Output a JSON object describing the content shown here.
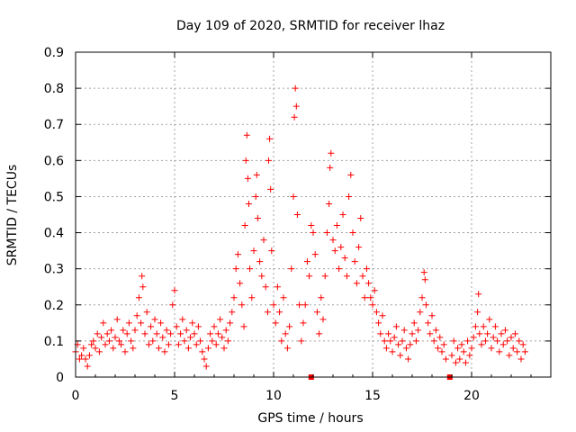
{
  "chart_data": {
    "type": "scatter",
    "title": "Day 109 of 2020, SRMTID for receiver lhaz",
    "xlabel": "GPS time / hours",
    "ylabel": "SRMTID / TECUs",
    "xlim": [
      0,
      24
    ],
    "ylim": [
      0,
      0.9
    ],
    "x_ticks": [
      0,
      5,
      10,
      15,
      20
    ],
    "x_tick_labels": [
      "0",
      "5",
      "10",
      "15",
      "20"
    ],
    "y_ticks": [
      0,
      0.1,
      0.2,
      0.3,
      0.4,
      0.5,
      0.6,
      0.7,
      0.8,
      0.9
    ],
    "y_tick_labels": [
      "0",
      "0.1",
      "0.2",
      "0.3",
      "0.4",
      "0.5",
      "0.6",
      "0.7",
      "0.8",
      "0.9"
    ],
    "grid": true,
    "marker": "plus",
    "color": "#ff0000",
    "series": [
      {
        "name": "SRMTID",
        "points": [
          [
            0.0,
            0.07
          ],
          [
            0.1,
            0.09
          ],
          [
            0.2,
            0.05
          ],
          [
            0.3,
            0.06
          ],
          [
            0.4,
            0.08
          ],
          [
            0.5,
            0.05
          ],
          [
            0.6,
            0.03
          ],
          [
            0.7,
            0.06
          ],
          [
            0.8,
            0.09
          ],
          [
            0.9,
            0.1
          ],
          [
            1.0,
            0.08
          ],
          [
            1.1,
            0.12
          ],
          [
            1.2,
            0.07
          ],
          [
            1.3,
            0.11
          ],
          [
            1.4,
            0.15
          ],
          [
            1.5,
            0.09
          ],
          [
            1.6,
            0.12
          ],
          [
            1.7,
            0.1
          ],
          [
            1.8,
            0.13
          ],
          [
            1.9,
            0.08
          ],
          [
            2.0,
            0.11
          ],
          [
            2.1,
            0.16
          ],
          [
            2.2,
            0.1
          ],
          [
            2.3,
            0.09
          ],
          [
            2.4,
            0.13
          ],
          [
            2.5,
            0.07
          ],
          [
            2.6,
            0.12
          ],
          [
            2.7,
            0.15
          ],
          [
            2.8,
            0.1
          ],
          [
            2.9,
            0.08
          ],
          [
            3.0,
            0.13
          ],
          [
            3.1,
            0.17
          ],
          [
            3.2,
            0.22
          ],
          [
            3.3,
            0.15
          ],
          [
            3.35,
            0.28
          ],
          [
            3.4,
            0.25
          ],
          [
            3.5,
            0.12
          ],
          [
            3.6,
            0.18
          ],
          [
            3.7,
            0.09
          ],
          [
            3.8,
            0.14
          ],
          [
            3.9,
            0.1
          ],
          [
            4.0,
            0.16
          ],
          [
            4.1,
            0.12
          ],
          [
            4.2,
            0.08
          ],
          [
            4.3,
            0.15
          ],
          [
            4.4,
            0.11
          ],
          [
            4.5,
            0.07
          ],
          [
            4.6,
            0.13
          ],
          [
            4.7,
            0.09
          ],
          [
            4.8,
            0.12
          ],
          [
            4.9,
            0.2
          ],
          [
            5.0,
            0.24
          ],
          [
            5.1,
            0.14
          ],
          [
            5.2,
            0.09
          ],
          [
            5.3,
            0.12
          ],
          [
            5.4,
            0.16
          ],
          [
            5.5,
            0.1
          ],
          [
            5.6,
            0.13
          ],
          [
            5.7,
            0.08
          ],
          [
            5.8,
            0.11
          ],
          [
            5.9,
            0.15
          ],
          [
            6.0,
            0.12
          ],
          [
            6.1,
            0.09
          ],
          [
            6.2,
            0.14
          ],
          [
            6.3,
            0.1
          ],
          [
            6.4,
            0.07
          ],
          [
            6.5,
            0.05
          ],
          [
            6.6,
            0.03
          ],
          [
            6.7,
            0.08
          ],
          [
            6.8,
            0.12
          ],
          [
            6.9,
            0.1
          ],
          [
            7.0,
            0.14
          ],
          [
            7.1,
            0.09
          ],
          [
            7.2,
            0.12
          ],
          [
            7.3,
            0.16
          ],
          [
            7.4,
            0.11
          ],
          [
            7.5,
            0.08
          ],
          [
            7.6,
            0.13
          ],
          [
            7.7,
            0.1
          ],
          [
            7.8,
            0.15
          ],
          [
            7.9,
            0.18
          ],
          [
            8.0,
            0.22
          ],
          [
            8.1,
            0.3
          ],
          [
            8.2,
            0.34
          ],
          [
            8.3,
            0.26
          ],
          [
            8.4,
            0.2
          ],
          [
            8.5,
            0.14
          ],
          [
            8.55,
            0.42
          ],
          [
            8.6,
            0.6
          ],
          [
            8.65,
            0.67
          ],
          [
            8.7,
            0.55
          ],
          [
            8.75,
            0.48
          ],
          [
            8.8,
            0.3
          ],
          [
            8.9,
            0.22
          ],
          [
            9.0,
            0.35
          ],
          [
            9.1,
            0.5
          ],
          [
            9.15,
            0.56
          ],
          [
            9.2,
            0.44
          ],
          [
            9.3,
            0.32
          ],
          [
            9.4,
            0.28
          ],
          [
            9.5,
            0.38
          ],
          [
            9.6,
            0.25
          ],
          [
            9.7,
            0.18
          ],
          [
            9.75,
            0.6
          ],
          [
            9.8,
            0.66
          ],
          [
            9.85,
            0.52
          ],
          [
            9.9,
            0.35
          ],
          [
            10.0,
            0.2
          ],
          [
            10.1,
            0.15
          ],
          [
            10.2,
            0.25
          ],
          [
            10.3,
            0.18
          ],
          [
            10.4,
            0.1
          ],
          [
            10.5,
            0.22
          ],
          [
            10.6,
            0.12
          ],
          [
            10.7,
            0.08
          ],
          [
            10.8,
            0.14
          ],
          [
            10.9,
            0.3
          ],
          [
            11.0,
            0.5
          ],
          [
            11.05,
            0.72
          ],
          [
            11.1,
            0.8
          ],
          [
            11.15,
            0.75
          ],
          [
            11.2,
            0.45
          ],
          [
            11.3,
            0.2
          ],
          [
            11.4,
            0.1
          ],
          [
            11.5,
            0.15
          ],
          [
            11.6,
            0.2
          ],
          [
            11.7,
            0.32
          ],
          [
            11.8,
            0.28
          ],
          [
            11.9,
            0.42
          ],
          [
            12.0,
            0.4
          ],
          [
            12.1,
            0.34
          ],
          [
            12.2,
            0.18
          ],
          [
            12.3,
            0.12
          ],
          [
            12.4,
            0.22
          ],
          [
            12.5,
            0.16
          ],
          [
            12.6,
            0.28
          ],
          [
            12.7,
            0.4
          ],
          [
            12.8,
            0.48
          ],
          [
            12.85,
            0.58
          ],
          [
            12.9,
            0.62
          ],
          [
            13.0,
            0.38
          ],
          [
            13.1,
            0.35
          ],
          [
            13.2,
            0.42
          ],
          [
            13.3,
            0.3
          ],
          [
            13.4,
            0.36
          ],
          [
            13.5,
            0.45
          ],
          [
            13.6,
            0.33
          ],
          [
            13.7,
            0.28
          ],
          [
            13.8,
            0.5
          ],
          [
            13.9,
            0.56
          ],
          [
            14.0,
            0.4
          ],
          [
            14.1,
            0.32
          ],
          [
            14.2,
            0.26
          ],
          [
            14.3,
            0.36
          ],
          [
            14.4,
            0.44
          ],
          [
            14.5,
            0.28
          ],
          [
            14.6,
            0.22
          ],
          [
            14.7,
            0.3
          ],
          [
            14.8,
            0.26
          ],
          [
            14.9,
            0.22
          ],
          [
            15.0,
            0.2
          ],
          [
            15.1,
            0.24
          ],
          [
            15.2,
            0.18
          ],
          [
            15.3,
            0.15
          ],
          [
            15.4,
            0.12
          ],
          [
            15.5,
            0.17
          ],
          [
            15.6,
            0.1
          ],
          [
            15.7,
            0.08
          ],
          [
            15.8,
            0.12
          ],
          [
            15.9,
            0.1
          ],
          [
            16.0,
            0.07
          ],
          [
            16.1,
            0.11
          ],
          [
            16.2,
            0.14
          ],
          [
            16.3,
            0.09
          ],
          [
            16.4,
            0.06
          ],
          [
            16.5,
            0.1
          ],
          [
            16.6,
            0.13
          ],
          [
            16.7,
            0.08
          ],
          [
            16.8,
            0.05
          ],
          [
            16.9,
            0.09
          ],
          [
            17.0,
            0.12
          ],
          [
            17.1,
            0.15
          ],
          [
            17.2,
            0.1
          ],
          [
            17.3,
            0.13
          ],
          [
            17.4,
            0.18
          ],
          [
            17.5,
            0.22
          ],
          [
            17.6,
            0.29
          ],
          [
            17.65,
            0.27
          ],
          [
            17.7,
            0.2
          ],
          [
            17.8,
            0.15
          ],
          [
            17.9,
            0.12
          ],
          [
            18.0,
            0.17
          ],
          [
            18.1,
            0.1
          ],
          [
            18.2,
            0.13
          ],
          [
            18.3,
            0.08
          ],
          [
            18.4,
            0.11
          ],
          [
            18.5,
            0.07
          ],
          [
            18.6,
            0.09
          ],
          [
            18.7,
            0.05
          ],
          [
            19.0,
            0.06
          ],
          [
            19.1,
            0.1
          ],
          [
            19.2,
            0.04
          ],
          [
            19.3,
            0.08
          ],
          [
            19.4,
            0.05
          ],
          [
            19.5,
            0.09
          ],
          [
            19.6,
            0.07
          ],
          [
            19.7,
            0.04
          ],
          [
            19.8,
            0.1
          ],
          [
            19.9,
            0.06
          ],
          [
            20.0,
            0.08
          ],
          [
            20.1,
            0.11
          ],
          [
            20.2,
            0.14
          ],
          [
            20.3,
            0.18
          ],
          [
            20.35,
            0.23
          ],
          [
            20.4,
            0.12
          ],
          [
            20.5,
            0.09
          ],
          [
            20.6,
            0.14
          ],
          [
            20.7,
            0.1
          ],
          [
            20.8,
            0.12
          ],
          [
            20.9,
            0.16
          ],
          [
            21.0,
            0.08
          ],
          [
            21.1,
            0.11
          ],
          [
            21.2,
            0.14
          ],
          [
            21.3,
            0.1
          ],
          [
            21.4,
            0.07
          ],
          [
            21.5,
            0.12
          ],
          [
            21.6,
            0.09
          ],
          [
            21.7,
            0.13
          ],
          [
            21.8,
            0.1
          ],
          [
            21.9,
            0.06
          ],
          [
            22.0,
            0.11
          ],
          [
            22.1,
            0.08
          ],
          [
            22.2,
            0.12
          ],
          [
            22.3,
            0.07
          ],
          [
            22.4,
            0.1
          ],
          [
            22.5,
            0.05
          ],
          [
            22.6,
            0.09
          ],
          [
            22.7,
            0.07
          ]
        ]
      }
    ],
    "marker_points": [
      [
        11.9,
        0.0
      ],
      [
        18.9,
        0.0
      ]
    ]
  }
}
